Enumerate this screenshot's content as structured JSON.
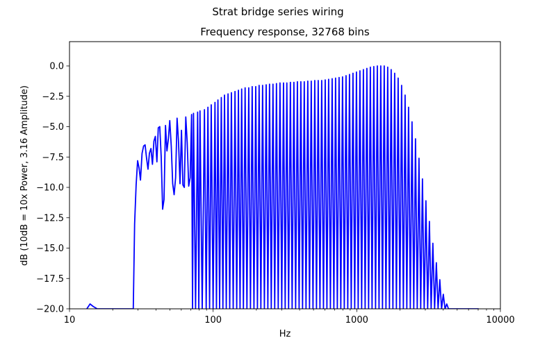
{
  "figure": {
    "suptitle": "Strat bridge series wiring"
  },
  "chart_data": {
    "type": "line",
    "title": "Frequency response, 32768 bins",
    "xlabel": "Hz",
    "ylabel": "dB (10dB = 10x Power, 3.16 Amplitude)",
    "xscale": "log",
    "xlim": [
      10,
      10000
    ],
    "ylim": [
      -20,
      2
    ],
    "xticks": [
      10,
      100,
      1000,
      10000
    ],
    "xtick_labels": [
      "10",
      "100",
      "1000",
      "10000"
    ],
    "yticks": [
      -20,
      -17.5,
      -15,
      -12.5,
      -10,
      -7.5,
      -5,
      -2.5,
      0
    ],
    "ytick_labels": [
      "−20.0",
      "−17.5",
      "−15.0",
      "−12.5",
      "−10.0",
      "−7.5",
      "−5.0",
      "−2.5",
      "0.0"
    ],
    "grid": false,
    "series": [
      {
        "color": "#0000ff",
        "x": [
          13.2,
          13.9,
          14.6,
          15.6,
          16.5,
          17.5,
          18.5,
          19.5,
          20.5,
          21.5,
          22.5,
          23.5,
          24.5,
          25.5,
          26.5,
          27.1,
          27.8,
          28.4,
          29.1,
          29.8,
          30.5,
          31.2,
          32.0,
          32.8,
          33.6,
          34.4,
          35.2,
          36.0,
          36.9,
          37.8,
          38.7,
          39.6,
          40.6,
          41.5,
          42.5,
          43.5,
          44.5,
          45.5,
          46.6,
          47.7,
          48.8,
          49.9,
          51.1,
          52.3,
          53.5,
          54.8,
          56.1,
          57.4,
          58.8,
          60.2,
          61.6,
          63.0,
          64.5,
          66.0,
          67.6,
          69.2,
          70.8
        ],
        "y": [
          -20.0,
          -19.6,
          -19.8,
          -20.0,
          -20.0,
          -20.0,
          -20.0,
          -20.0,
          -20.0,
          -20.0,
          -20.0,
          -20.0,
          -20.0,
          -20.0,
          -20.0,
          -20.0,
          -20.0,
          -13.0,
          -9.8,
          -7.8,
          -8.4,
          -9.4,
          -7.2,
          -6.6,
          -6.5,
          -7.6,
          -8.5,
          -7.2,
          -6.8,
          -8.1,
          -6.2,
          -5.8,
          -7.9,
          -5.1,
          -5.0,
          -7.5,
          -11.8,
          -11.0,
          -4.9,
          -7.0,
          -6.0,
          -4.5,
          -6.6,
          -9.7,
          -10.6,
          -9.2,
          -4.3,
          -6.2,
          -9.7,
          -5.3,
          -9.8,
          -10.0,
          -4.2,
          -6.3,
          -9.9,
          -9.2,
          -4.0
        ]
      }
    ],
    "comb": {
      "peaks_hz": [
        73.0,
        78.0,
        81.0,
        87.0,
        92.0,
        97.0,
        103.0,
        108.0,
        114.0,
        120.0,
        127.0,
        134.0,
        142.0,
        150.0,
        158.0,
        167.0,
        177.0,
        187.0,
        198.0,
        209.0,
        221.0,
        234.0,
        247.0,
        261.0,
        276.0,
        292.0,
        309.0,
        326.0,
        345.0,
        365.0,
        386.0,
        408.0,
        431.0,
        456.0,
        482.0,
        510.0,
        539.0,
        570.0,
        603.0,
        637.0,
        674.0,
        712.0,
        753.0,
        796.0,
        842.0,
        890.0,
        941.0,
        995.0,
        1052.0,
        1112.0,
        1176.0,
        1243.0,
        1314.0,
        1390.0,
        1469.0,
        1553.0,
        1642.0,
        1736.0,
        1836.0,
        1941.0,
        2052.0,
        2170.0,
        2294.0,
        2425.0,
        2564.0,
        2711.0,
        2866.0,
        3030.0,
        3204.0,
        3387.0,
        3581.0,
        3786.0,
        4003.0,
        4232.0,
        4474.0,
        4730.0,
        5001.0,
        5287.0,
        5590.0,
        5910.0,
        6248.0,
        6606.0,
        6984.0
      ],
      "peaks_db": [
        -3.9,
        -3.8,
        -3.7,
        -3.6,
        -3.4,
        -3.2,
        -3.0,
        -2.8,
        -2.6,
        -2.4,
        -2.3,
        -2.2,
        -2.1,
        -2.0,
        -1.9,
        -1.8,
        -1.8,
        -1.7,
        -1.7,
        -1.6,
        -1.6,
        -1.55,
        -1.5,
        -1.5,
        -1.45,
        -1.4,
        -1.4,
        -1.4,
        -1.35,
        -1.35,
        -1.3,
        -1.3,
        -1.3,
        -1.25,
        -1.25,
        -1.2,
        -1.2,
        -1.2,
        -1.15,
        -1.1,
        -1.05,
        -1.0,
        -0.95,
        -0.9,
        -0.8,
        -0.7,
        -0.6,
        -0.5,
        -0.4,
        -0.3,
        -0.2,
        -0.1,
        -0.05,
        -0.0,
        -0.0,
        -0.0,
        -0.1,
        -0.3,
        -0.6,
        -1.0,
        -1.6,
        -2.4,
        -3.4,
        -4.6,
        -6.0,
        -7.6,
        -9.3,
        -11.1,
        -12.8,
        -14.6,
        -16.2,
        -17.6,
        -18.8,
        -19.6,
        -20.0,
        -20.0,
        -20.0,
        -20.0,
        -20.0,
        -20.0,
        -20.0,
        -20.0,
        -20.0
      ],
      "troughs_db": -20.0
    }
  }
}
